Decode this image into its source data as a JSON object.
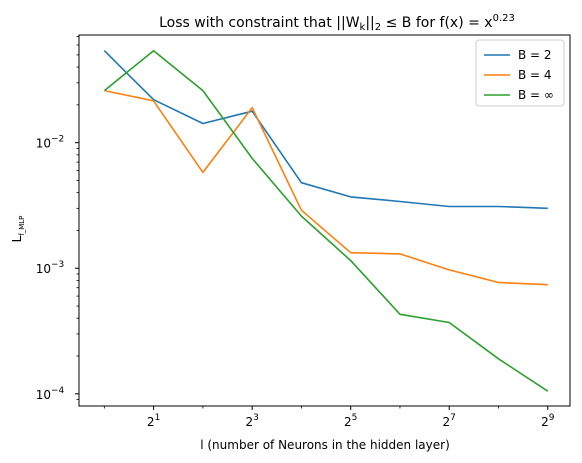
{
  "chart_data": {
    "type": "line",
    "title": "Loss with constraint that ||W_k||_2 ≤ B for f(x) = x^0.23",
    "title_parts": {
      "prefix": "Loss with constraint that ||W",
      "sub_k": "k",
      "mid": "||",
      "sub_2": "2",
      "rest": " ≤ B for f(x) = x",
      "sup": "0.23"
    },
    "xlabel": "l (number of Neurons in the hidden layer)",
    "ylabel": "L",
    "ylabel_sub": "f_MLP",
    "x_scale": "log2",
    "y_scale": "log10",
    "x": [
      1,
      2,
      4,
      8,
      16,
      32,
      64,
      128,
      256,
      512
    ],
    "x_ticks": [
      {
        "value": 2,
        "label": "2",
        "exp": "1"
      },
      {
        "value": 8,
        "label": "2",
        "exp": "3"
      },
      {
        "value": 32,
        "label": "2",
        "exp": "5"
      },
      {
        "value": 128,
        "label": "2",
        "exp": "7"
      },
      {
        "value": 512,
        "label": "2",
        "exp": "9"
      }
    ],
    "y_ticks": [
      {
        "value": 0.0001,
        "label": "10",
        "exp": "−4"
      },
      {
        "value": 0.001,
        "label": "10",
        "exp": "−3"
      },
      {
        "value": 0.01,
        "label": "10",
        "exp": "−2"
      }
    ],
    "xlim": [
      0.7,
      700
    ],
    "ylim": [
      8e-05,
      0.072
    ],
    "legend_position": "top-right",
    "series": [
      {
        "name": "B = 2",
        "color": "#1f77b4",
        "values": [
          0.054,
          0.022,
          0.0142,
          0.0178,
          0.0048,
          0.0037,
          0.0034,
          0.0031,
          0.0031,
          0.003
        ]
      },
      {
        "name": "B = 4",
        "color": "#ff7f0e",
        "values": [
          0.026,
          0.0215,
          0.0058,
          0.019,
          0.0029,
          0.00133,
          0.0013,
          0.00097,
          0.00077,
          0.00074
        ]
      },
      {
        "name": "B = ∞",
        "color": "#2ca02c",
        "values": [
          0.026,
          0.054,
          0.026,
          0.0075,
          0.0026,
          0.00115,
          0.00043,
          0.00037,
          0.00019,
          0.000105
        ]
      }
    ]
  }
}
